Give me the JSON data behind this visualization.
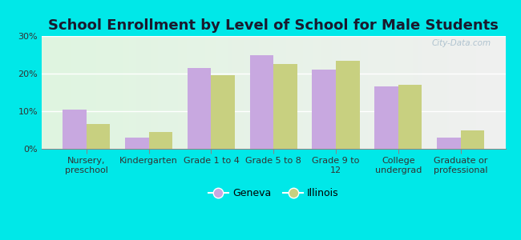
{
  "title": "School Enrollment by Level of School for Male Students",
  "categories": [
    "Nursery,\npreschool",
    "Kindergarten",
    "Grade 1 to 4",
    "Grade 5 to 8",
    "Grade 9 to\n12",
    "College\nundergrad",
    "Graduate or\nprofessional"
  ],
  "geneva_values": [
    10.5,
    3.0,
    21.5,
    25.0,
    21.0,
    16.5,
    3.0
  ],
  "illinois_values": [
    6.5,
    4.5,
    19.5,
    22.5,
    23.5,
    17.0,
    5.0
  ],
  "geneva_color": "#c8a8e0",
  "illinois_color": "#c8d080",
  "background_color": "#00e8e8",
  "ylabel_ticks": [
    "0%",
    "10%",
    "20%",
    "30%"
  ],
  "ytick_values": [
    0,
    10,
    20,
    30
  ],
  "ylim": [
    0,
    30
  ],
  "legend_labels": [
    "Geneva",
    "Illinois"
  ],
  "bar_width": 0.38,
  "title_fontsize": 13,
  "tick_fontsize": 8,
  "legend_fontsize": 9
}
